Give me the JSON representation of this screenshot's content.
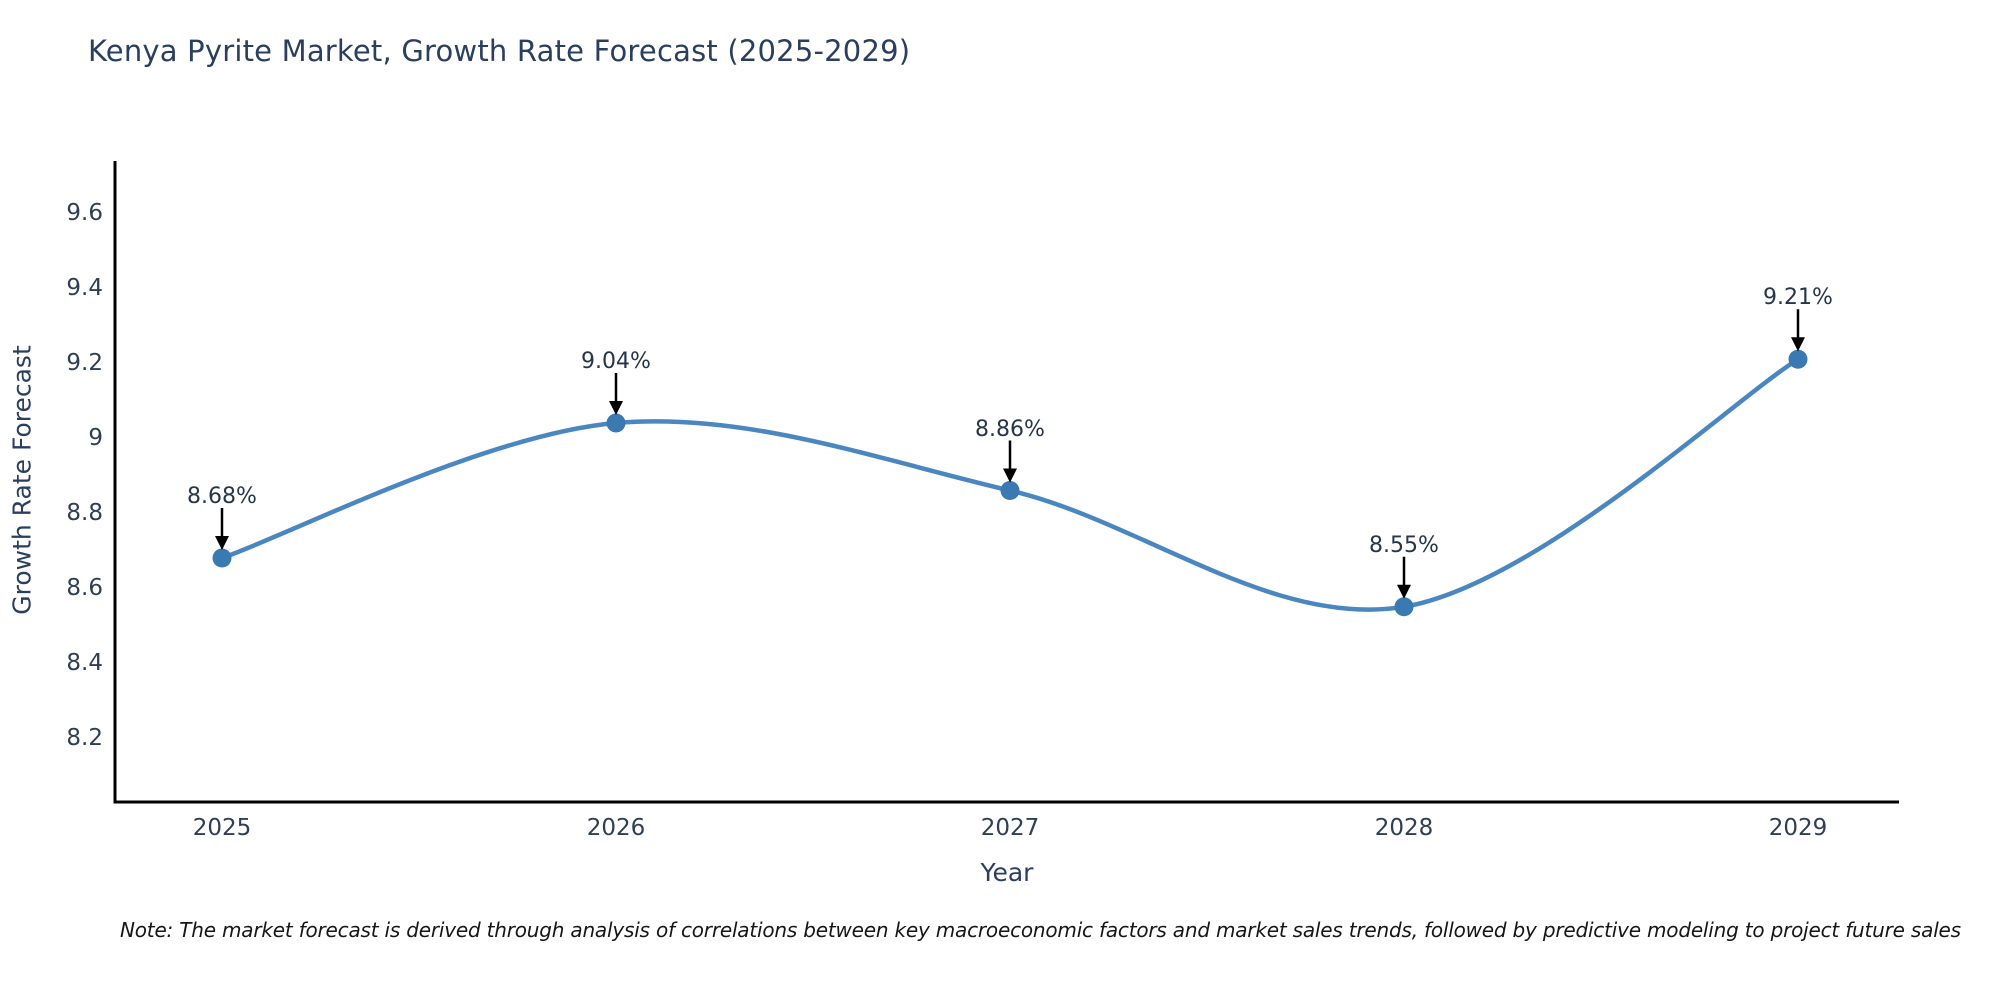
{
  "title": "Kenya Pyrite Market, Growth Rate Forecast (2025-2029)",
  "note": "Note: The market forecast is derived through analysis of correlations between key macroeconomic factors and market sales trends, followed by predictive modeling to project future sales",
  "chart_data": {
    "type": "line",
    "title": "Kenya Pyrite Market, Growth Rate Forecast (2025-2029)",
    "xlabel": "Year",
    "ylabel": "Growth Rate Forecast",
    "categories": [
      "2025",
      "2026",
      "2027",
      "2028",
      "2029"
    ],
    "series": [
      {
        "name": "Growth Rate Forecast",
        "values": [
          8.68,
          9.04,
          8.86,
          8.55,
          9.21
        ]
      }
    ],
    "point_labels": [
      "8.68%",
      "9.04%",
      "8.86%",
      "8.55%",
      "9.21%"
    ],
    "ytick_values": [
      8.2,
      8.4,
      8.6,
      8.8,
      9.0,
      9.2,
      9.4,
      9.6
    ],
    "ytick_labels": [
      "8.2",
      "8.4",
      "8.6",
      "8.8",
      "9",
      "9.2",
      "9.4",
      "9.6"
    ],
    "ylim": [
      8.03,
      9.74
    ],
    "line_shape": "spline",
    "grid": false,
    "legend": "none",
    "annotations_style": "value label with down arrow to marker",
    "colors": {
      "line": "#4a86c0",
      "marker": "#3b79b3",
      "axis": "#000000",
      "title_text": "#2a3f5f",
      "tick_text": "#2f3e54",
      "note_text": "#161616"
    }
  }
}
